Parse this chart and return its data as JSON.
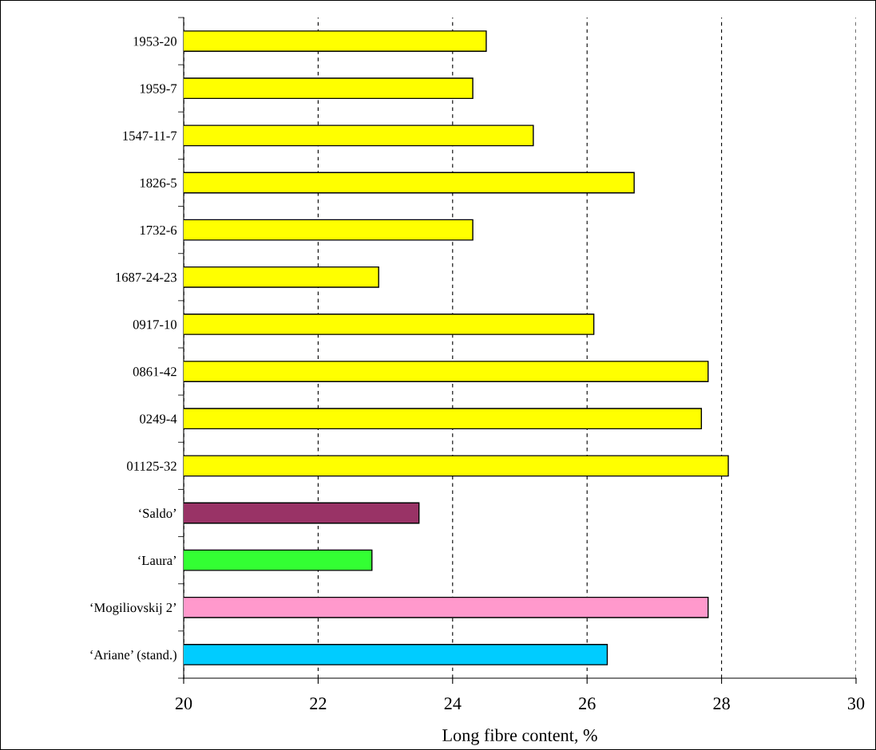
{
  "chart_data": {
    "type": "bar",
    "orientation": "horizontal",
    "xlabel": "Long fibre content, %",
    "categories": [
      "1953-20",
      "1959-7",
      "1547-11-7",
      "1826-5",
      "1732-6",
      "1687-24-23",
      "0917-10",
      "0861-42",
      "0249-4",
      "01125-32",
      "‘Saldo’",
      "‘Laura’",
      "‘Mogiliovskij 2’",
      "‘Ariane’ (stand.)"
    ],
    "values": [
      24.5,
      24.3,
      25.2,
      26.7,
      24.3,
      22.9,
      26.1,
      27.8,
      27.7,
      28.1,
      23.5,
      22.8,
      27.8,
      26.3
    ],
    "colors": [
      "#ffff00",
      "#ffff00",
      "#ffff00",
      "#ffff00",
      "#ffff00",
      "#ffff00",
      "#ffff00",
      "#ffff00",
      "#ffff00",
      "#ffff00",
      "#993366",
      "#33ff33",
      "#ff99cc",
      "#00ccff"
    ],
    "xlim": [
      20,
      30
    ],
    "xticks": [
      20,
      22,
      24,
      26,
      28,
      30
    ],
    "grid": "x"
  }
}
